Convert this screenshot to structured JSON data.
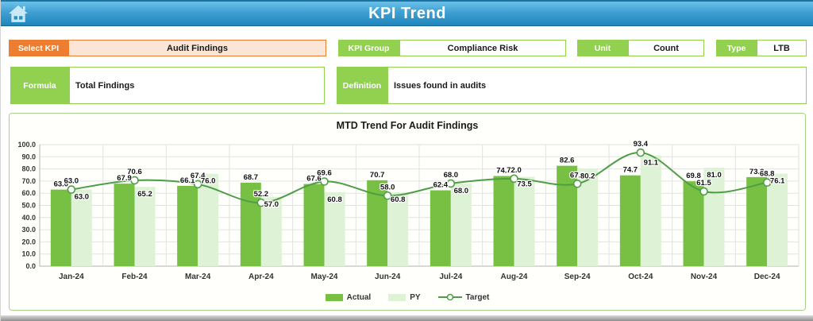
{
  "header": {
    "title": "KPI Trend"
  },
  "controls": {
    "select_kpi": {
      "label": "Select KPI",
      "value": "Audit Findings"
    },
    "kpi_group": {
      "label": "KPI Group",
      "value": "Compliance Risk"
    },
    "unit": {
      "label": "Unit",
      "value": "Count"
    },
    "type": {
      "label": "Type",
      "value": "LTB"
    },
    "formula": {
      "label": "Formula",
      "value": "Total Findings"
    },
    "definition": {
      "label": "Definition",
      "value": "Issues found in audits"
    }
  },
  "chart_data": {
    "type": "bar",
    "title": "MTD Trend For Audit Findings",
    "categories": [
      "Jan-24",
      "Feb-24",
      "Mar-24",
      "Apr-24",
      "May-24",
      "Jun-24",
      "Jul-24",
      "Aug-24",
      "Sep-24",
      "Oct-24",
      "Nov-24",
      "Dec-24"
    ],
    "series": [
      {
        "name": "Actual",
        "type": "bar",
        "color": "#77C043",
        "values": [
          63.0,
          67.9,
          66.1,
          68.7,
          67.6,
          70.7,
          62.4,
          74.2,
          82.6,
          74.7,
          69.8,
          73.3
        ]
      },
      {
        "name": "PY",
        "type": "bar",
        "color": "#DEF2D6",
        "values": [
          63.0,
          65.2,
          76.0,
          57.0,
          60.8,
          60.8,
          68.0,
          73.5,
          80.2,
          91.1,
          81.0,
          76.1
        ]
      },
      {
        "name": "Target",
        "type": "line",
        "color": "#4E9E45",
        "marker": "circle",
        "values": [
          63.0,
          70.6,
          67.4,
          52.2,
          69.6,
          58.0,
          68.0,
          72.0,
          67.8,
          93.4,
          61.5,
          68.8
        ]
      }
    ],
    "xlabel": "",
    "ylabel": "",
    "ylim": [
      0,
      100
    ],
    "ytick_step": 10,
    "ytick_format": "0.0",
    "grid": true,
    "legend_position": "bottom"
  },
  "colors": {
    "header_blue_top": "#6CC1E9",
    "header_blue_bottom": "#1E86BC",
    "accent_orange": "#ED7D31",
    "orange_field_fill": "#FBE5D6",
    "accent_green": "#92D050",
    "panel_border_green": "#A9D18E",
    "bar_actual": "#77C043",
    "bar_py": "#DEF2D6",
    "line_target": "#4E9E45"
  }
}
